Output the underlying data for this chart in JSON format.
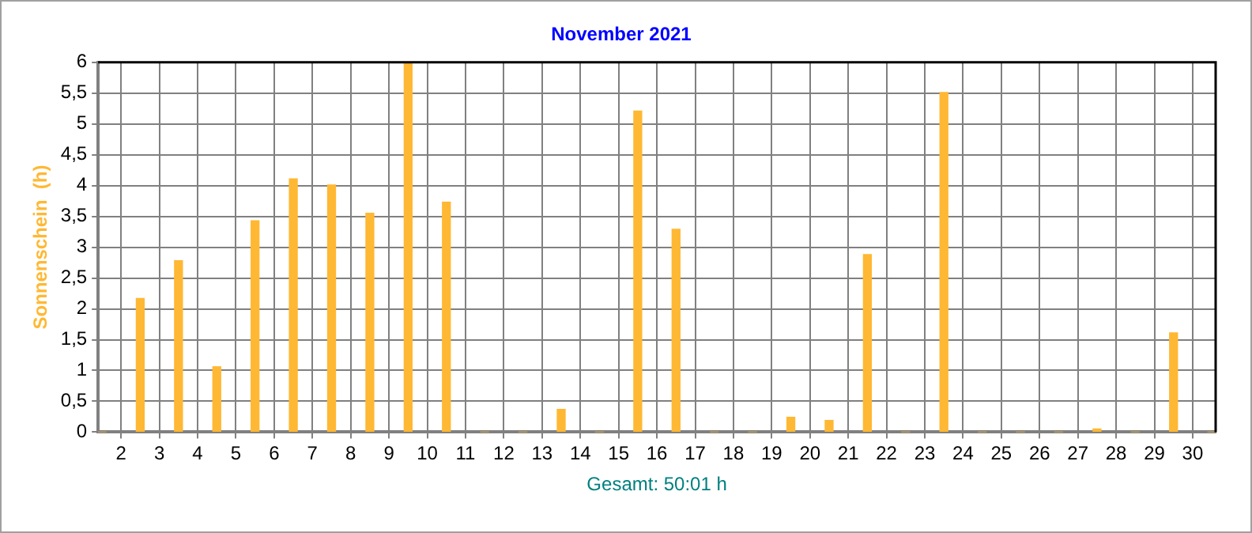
{
  "chart_data": {
    "type": "bar",
    "title": "November 2021",
    "ylabel": "Sonnenschein  (h)",
    "xlabel": "Gesamt: 50:01 h",
    "x": [
      1.5,
      2.5,
      3.5,
      4.5,
      5.5,
      6.5,
      7.5,
      8.5,
      9.5,
      10.5,
      11.5,
      12.5,
      13.5,
      14.5,
      15.5,
      16.5,
      17.5,
      18.5,
      19.5,
      20.5,
      21.5,
      22.5,
      23.5,
      24.5,
      25.5,
      26.5,
      27.5,
      28.5,
      29.5,
      30.5
    ],
    "values": [
      0,
      2.17,
      2.78,
      1.06,
      3.43,
      4.11,
      4.01,
      3.55,
      6,
      3.73,
      0,
      0,
      0.37,
      0,
      5.21,
      3.29,
      0,
      0,
      0.24,
      0.19,
      2.88,
      0,
      5.51,
      0,
      0,
      0,
      0.05,
      0,
      1.61,
      0
    ],
    "color": "#ffb833",
    "xlim": [
      1.4,
      30.6
    ],
    "xticks": [
      2,
      3,
      4,
      5,
      6,
      7,
      8,
      9,
      10,
      11,
      12,
      13,
      14,
      15,
      16,
      17,
      18,
      19,
      20,
      21,
      22,
      23,
      24,
      25,
      26,
      27,
      28,
      29,
      30
    ],
    "ylim": [
      0,
      6
    ],
    "yticks": [
      0,
      {
        "value": 0.5,
        "label": "0,5"
      },
      1,
      {
        "value": 1.5,
        "label": "1,5"
      },
      2,
      {
        "value": 2.5,
        "label": "2,5"
      },
      3,
      {
        "value": 3.5,
        "label": "3,5"
      },
      4,
      {
        "value": 4.5,
        "label": "4,5"
      },
      5,
      {
        "value": 5.5,
        "label": "5,5"
      },
      6
    ],
    "grid": true,
    "legend": false
  }
}
